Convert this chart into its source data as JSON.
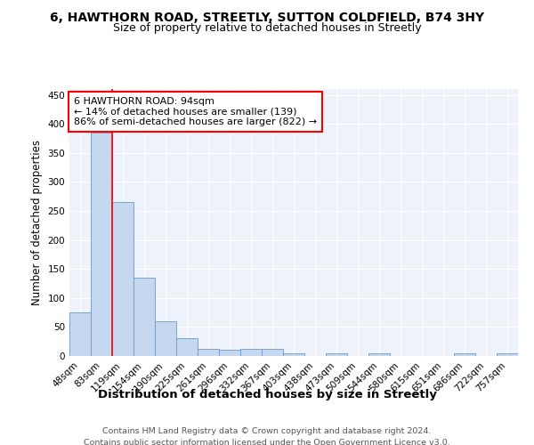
{
  "title": "6, HAWTHORN ROAD, STREETLY, SUTTON COLDFIELD, B74 3HY",
  "subtitle": "Size of property relative to detached houses in Streetly",
  "xlabel": "Distribution of detached houses by size in Streetly",
  "ylabel": "Number of detached properties",
  "bin_labels": [
    "48sqm",
    "83sqm",
    "119sqm",
    "154sqm",
    "190sqm",
    "225sqm",
    "261sqm",
    "296sqm",
    "332sqm",
    "367sqm",
    "403sqm",
    "438sqm",
    "473sqm",
    "509sqm",
    "544sqm",
    "580sqm",
    "615sqm",
    "651sqm",
    "686sqm",
    "722sqm",
    "757sqm"
  ],
  "bar_heights": [
    75,
    385,
    265,
    135,
    60,
    30,
    12,
    10,
    12,
    12,
    5,
    0,
    5,
    0,
    5,
    0,
    0,
    0,
    5,
    0,
    5
  ],
  "bar_color": "#c5d8f0",
  "bar_edgecolor": "#6699cc",
  "red_line_x": 1.5,
  "annotation_text": "6 HAWTHORN ROAD: 94sqm\n← 14% of detached houses are smaller (139)\n86% of semi-detached houses are larger (822) →",
  "annotation_box_edgecolor": "red",
  "red_line_color": "red",
  "ylim": [
    0,
    460
  ],
  "yticks": [
    0,
    50,
    100,
    150,
    200,
    250,
    300,
    350,
    400,
    450
  ],
  "footer1": "Contains HM Land Registry data © Crown copyright and database right 2024.",
  "footer2": "Contains public sector information licensed under the Open Government Licence v3.0.",
  "background_color": "#eef2fb",
  "title_fontsize": 10,
  "subtitle_fontsize": 9,
  "xlabel_fontsize": 9.5,
  "ylabel_fontsize": 8.5,
  "tick_fontsize": 7.5,
  "annotation_fontsize": 8,
  "footer_fontsize": 6.8
}
